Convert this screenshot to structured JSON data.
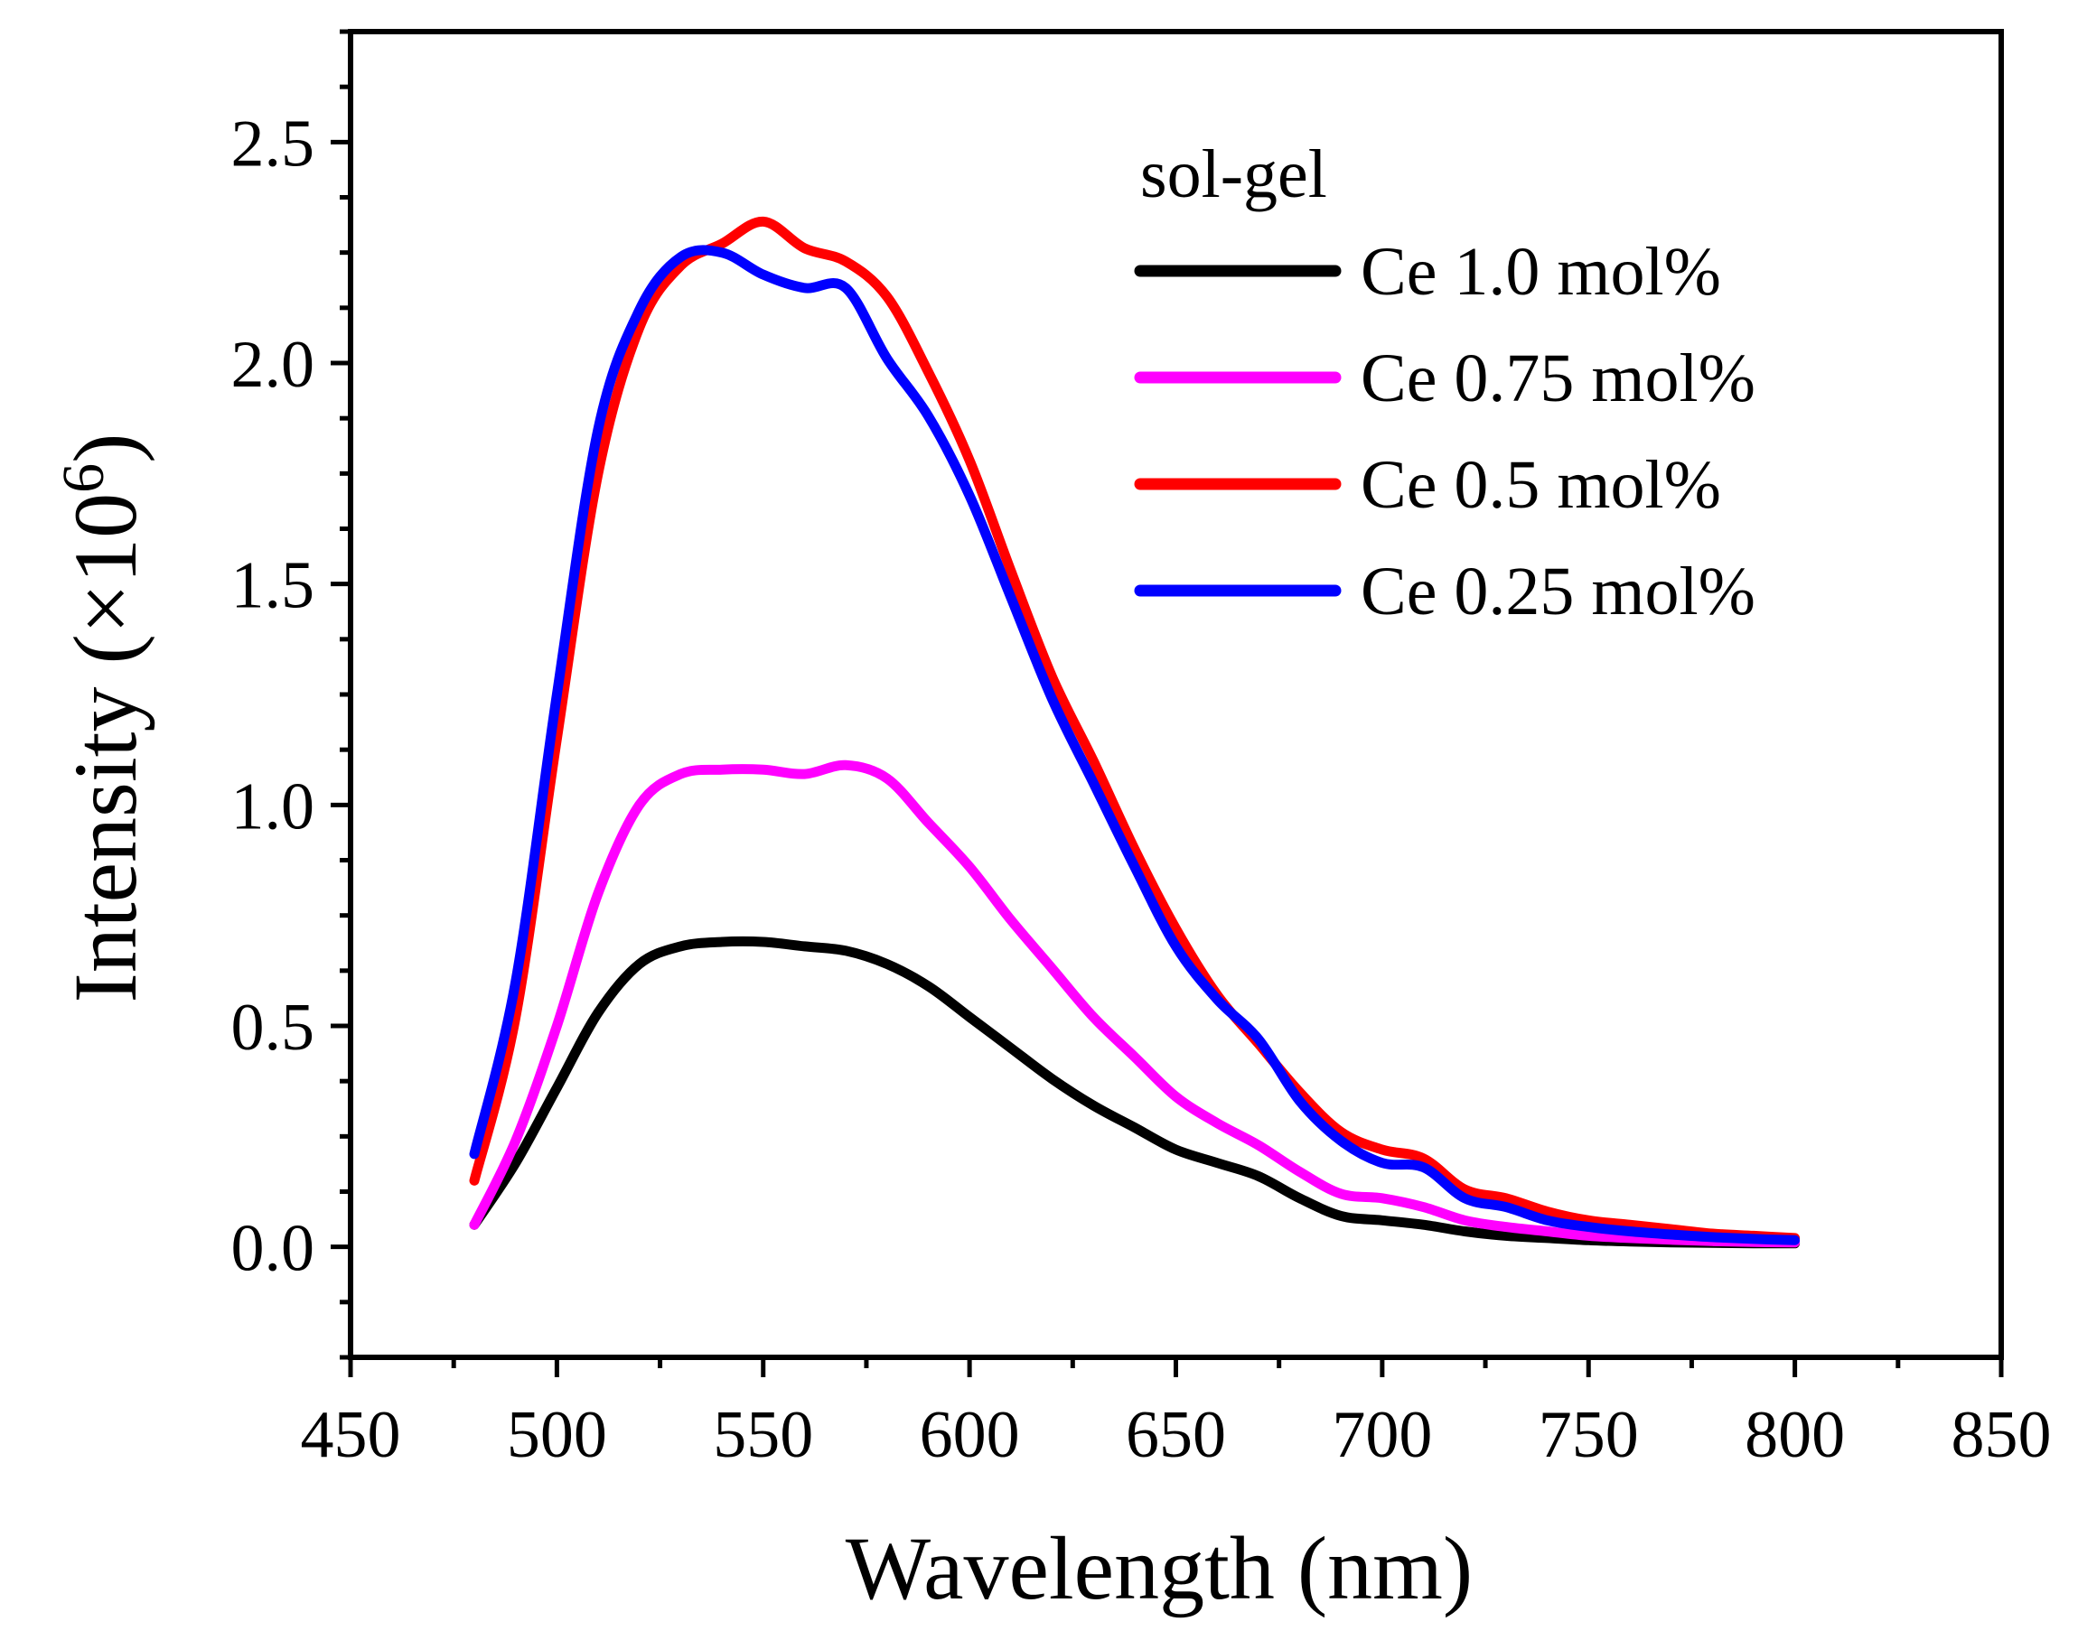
{
  "chart_data": {
    "type": "line",
    "title": "",
    "xlabel": "Wavelength (nm)",
    "ylabel_main": "Intensity (×10",
    "ylabel_sup": "6",
    "ylabel_close": ")",
    "xlim": [
      450,
      850
    ],
    "ylim": [
      -0.25,
      2.75
    ],
    "xticks": [
      450,
      500,
      550,
      600,
      650,
      700,
      750,
      800,
      850
    ],
    "xtick_labels": [
      "450",
      "500",
      "550",
      "600",
      "650",
      "700",
      "750",
      "800",
      "850"
    ],
    "yticks": [
      0.0,
      0.5,
      1.0,
      1.5,
      2.0,
      2.5
    ],
    "ytick_labels": [
      "0.0",
      "0.5",
      "1.0",
      "1.5",
      "2.0",
      "2.5"
    ],
    "legend_title": "sol-gel",
    "legend_position": "top-right",
    "x": [
      480,
      490,
      500,
      510,
      520,
      530,
      540,
      550,
      560,
      570,
      580,
      590,
      600,
      610,
      620,
      630,
      640,
      650,
      660,
      670,
      680,
      690,
      700,
      710,
      720,
      730,
      740,
      750,
      760,
      770,
      780,
      790,
      800
    ],
    "series": [
      {
        "name": "Ce 1.0 mol%",
        "color": "#000000",
        "values": [
          0.05,
          0.19,
          0.36,
          0.53,
          0.64,
          0.68,
          0.69,
          0.69,
          0.68,
          0.67,
          0.64,
          0.59,
          0.52,
          0.45,
          0.38,
          0.32,
          0.27,
          0.22,
          0.19,
          0.16,
          0.11,
          0.07,
          0.06,
          0.05,
          0.035,
          0.025,
          0.02,
          0.015,
          0.012,
          0.01,
          0.009,
          0.008,
          0.008
        ]
      },
      {
        "name": "Ce 0.75 mol%",
        "color": "#ff00ff",
        "values": [
          0.05,
          0.24,
          0.5,
          0.8,
          1.0,
          1.07,
          1.08,
          1.08,
          1.07,
          1.09,
          1.06,
          0.96,
          0.86,
          0.74,
          0.63,
          0.52,
          0.43,
          0.34,
          0.28,
          0.23,
          0.17,
          0.12,
          0.11,
          0.09,
          0.06,
          0.045,
          0.035,
          0.025,
          0.02,
          0.016,
          0.013,
          0.011,
          0.01
        ]
      },
      {
        "name": "Ce 0.5 mol%",
        "color": "#ff0000",
        "values": [
          0.15,
          0.52,
          1.15,
          1.75,
          2.08,
          2.22,
          2.27,
          2.32,
          2.26,
          2.23,
          2.15,
          1.98,
          1.78,
          1.53,
          1.29,
          1.1,
          0.9,
          0.72,
          0.57,
          0.46,
          0.35,
          0.26,
          0.22,
          0.2,
          0.13,
          0.11,
          0.08,
          0.06,
          0.05,
          0.04,
          0.03,
          0.025,
          0.02
        ]
      },
      {
        "name": "Ce 0.25 mol%",
        "color": "#0000ff",
        "values": [
          0.21,
          0.6,
          1.25,
          1.85,
          2.12,
          2.24,
          2.25,
          2.2,
          2.17,
          2.17,
          2.01,
          1.88,
          1.7,
          1.47,
          1.24,
          1.05,
          0.86,
          0.68,
          0.56,
          0.47,
          0.33,
          0.24,
          0.19,
          0.18,
          0.11,
          0.09,
          0.06,
          0.045,
          0.035,
          0.028,
          0.022,
          0.018,
          0.015
        ]
      }
    ]
  }
}
